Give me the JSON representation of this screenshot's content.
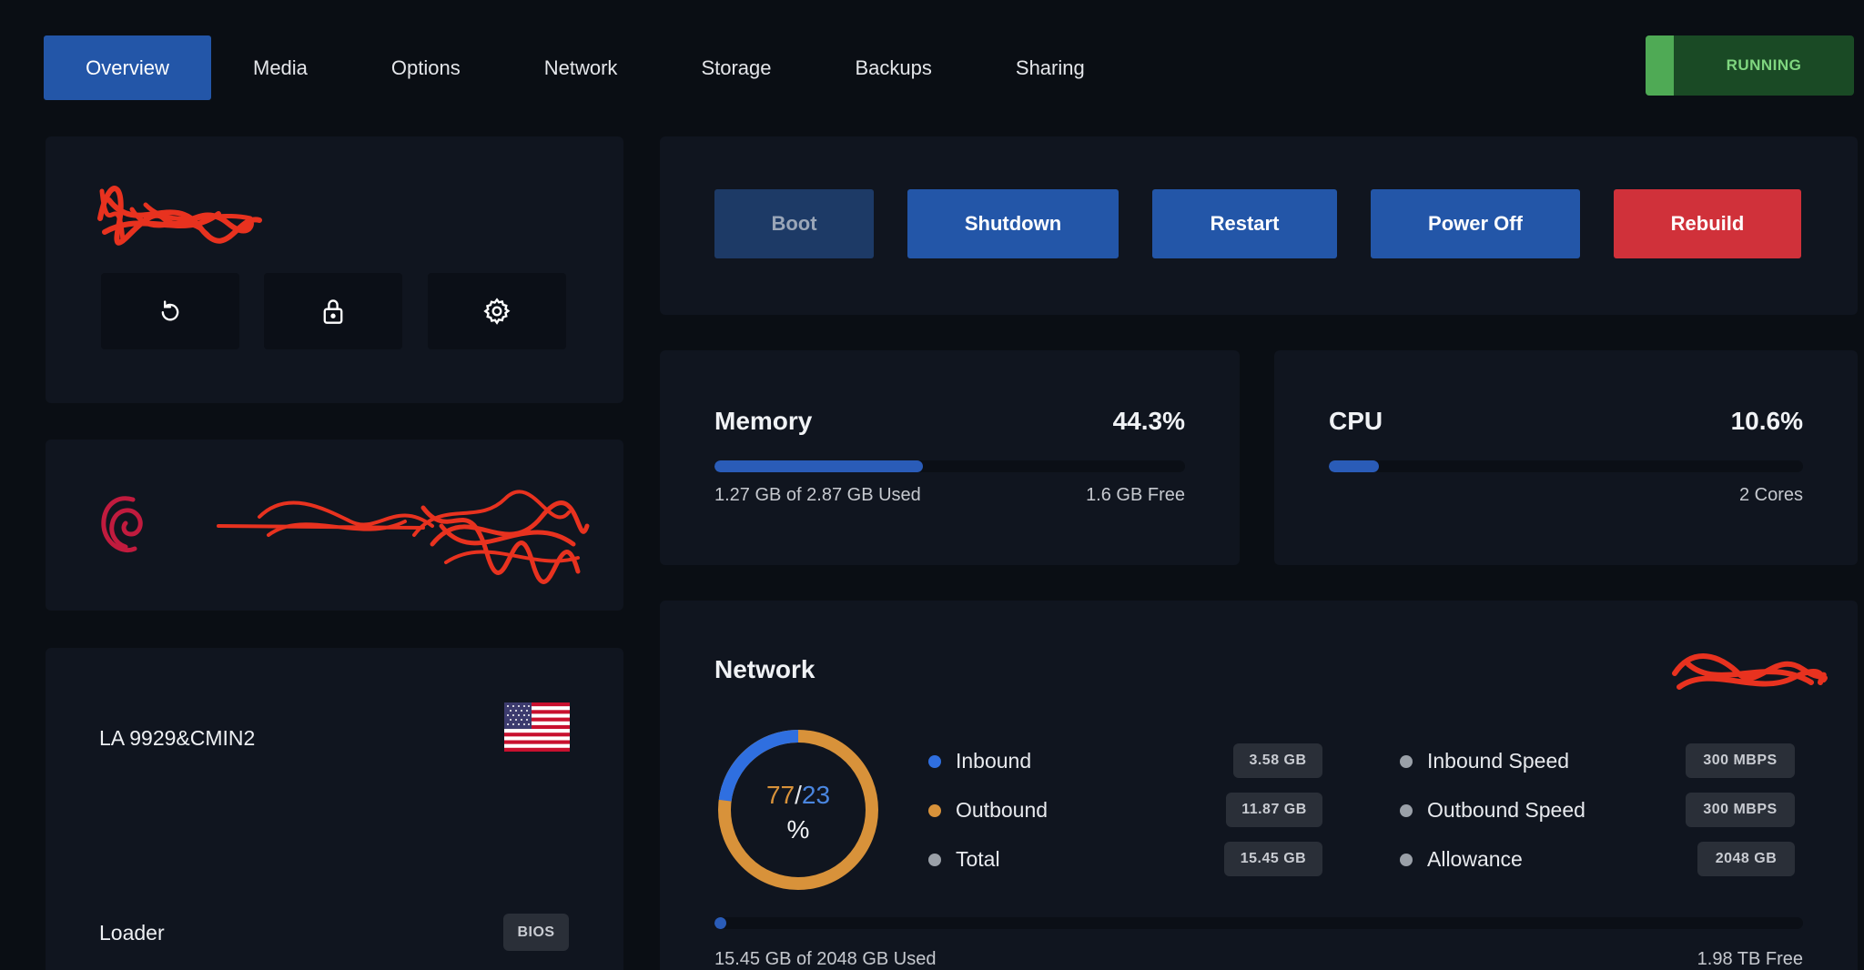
{
  "tabs": [
    "Overview",
    "Media",
    "Options",
    "Network",
    "Storage",
    "Backups",
    "Sharing"
  ],
  "status": {
    "label": "RUNNING",
    "color": "#4faa55"
  },
  "identity_icons": [
    "refresh-icon",
    "lock-icon",
    "gear-icon"
  ],
  "actions": {
    "boot": "Boot",
    "shutdown": "Shutdown",
    "restart": "Restart",
    "power_off": "Power Off",
    "rebuild": "Rebuild"
  },
  "memory": {
    "title": "Memory",
    "percent": "44.3%",
    "fill_fraction": 0.443,
    "used_text": "1.27 GB of 2.87 GB Used",
    "free_text": "1.6 GB Free"
  },
  "cpu": {
    "title": "CPU",
    "percent": "10.6%",
    "fill_fraction": 0.106,
    "cores_text": "2 Cores"
  },
  "location": {
    "name": "LA 9929&CMIN2",
    "loader_label": "Loader",
    "loader_value": "BIOS"
  },
  "network": {
    "title": "Network",
    "donut": {
      "outbound": "77",
      "separator": "/",
      "inbound": "23",
      "unit": "%",
      "outbound_fraction": 0.77,
      "inbound_fraction": 0.23
    },
    "stats": [
      {
        "label": "Inbound",
        "value": "3.58 GB",
        "color": "#2f6fe0"
      },
      {
        "label": "Outbound",
        "value": "11.87 GB",
        "color": "#d8923a"
      },
      {
        "label": "Total",
        "value": "15.45 GB",
        "color": "#9aa0a8"
      }
    ],
    "speeds": [
      {
        "label": "Inbound Speed",
        "value": "300 MBPS"
      },
      {
        "label": "Outbound Speed",
        "value": "300 MBPS"
      },
      {
        "label": "Allowance",
        "value": "2048 GB"
      }
    ],
    "usage_fraction": 0.0075,
    "used_text": "15.45 GB of 2048 GB Used",
    "free_text": "1.98 TB Free"
  },
  "colors": {
    "accent": "#2356a8",
    "danger": "#d0313a",
    "outbound": "#d8923a",
    "inbound": "#2f6fe0"
  }
}
